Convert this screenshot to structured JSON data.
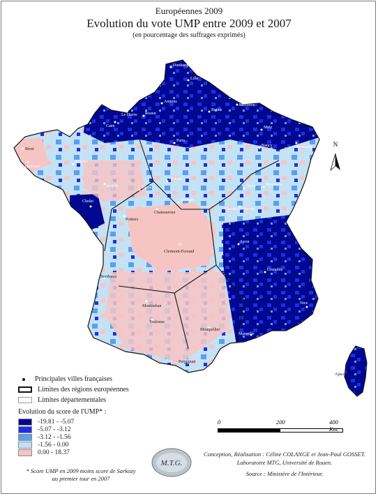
{
  "header": {
    "supertitle": "Européennes 2009",
    "title": "Evolution du vote UMP entre 2009 et 2007",
    "subtitle": "(en pourcentage des suffrages exprimés)"
  },
  "north_label": "N",
  "cities": [
    "Dunkerque",
    "Le Havre",
    "Caen",
    "Rouen",
    "Amiens",
    "Lille",
    "Reims",
    "Mézières",
    "Strasbourg",
    "Brest",
    "Quimper",
    "Rennes",
    "Angers",
    "Cholet",
    "La Baule",
    "Tours",
    "Orléans",
    "Bourges",
    "Dijon",
    "Chalon-sur-Saône",
    "Chateauroux",
    "Poitiers",
    "Clermont-Ferrand",
    "Bordeaux",
    "Montauban",
    "Toulouse",
    "Perpignan",
    "Montpellier",
    "Marseille",
    "Nice",
    "Ajaccio",
    "Paris",
    "Metz",
    "Nancy",
    "Besançon",
    "Lyon",
    "Grenoble"
  ],
  "legend": {
    "villes": "Principales villes françaises",
    "regions": "Limites des régions européennes",
    "departements": "Limites départementales",
    "heading": "Evolution du score de l'UMP* :",
    "classes": [
      {
        "label": "-19.81 - -5.07",
        "color": "#00088f"
      },
      {
        "label": "-5.07 - -3.12",
        "color": "#1e2ee8"
      },
      {
        "label": "-3.12 - -1.56",
        "color": "#5aa0f0"
      },
      {
        "label": "-1.56 - 0.00",
        "color": "#c4e2f5"
      },
      {
        "label": "0.00 - 18.37",
        "color": "#f7c4c4"
      }
    ]
  },
  "scale": {
    "labels": [
      "0",
      "200",
      "400 Km."
    ]
  },
  "logo_text": "M.T.G.",
  "credits": {
    "line1": "Conception, Réalisation : Céline COLANGE et Jean-Paul GOSSET.",
    "line2": "Laboratoire MTG, Université de Rouen.",
    "line3": "Source : Ministère de l'Intérieur."
  },
  "footnote": {
    "line1": "* Score UMP en 2009 moins score de Sarkozy",
    "line2": "au premier tour en 2007"
  },
  "colors": {
    "c1": "#00088f",
    "c2": "#1e2ee8",
    "c3": "#5aa0f0",
    "c4": "#c4e2f5",
    "c5": "#f7c4c4"
  }
}
